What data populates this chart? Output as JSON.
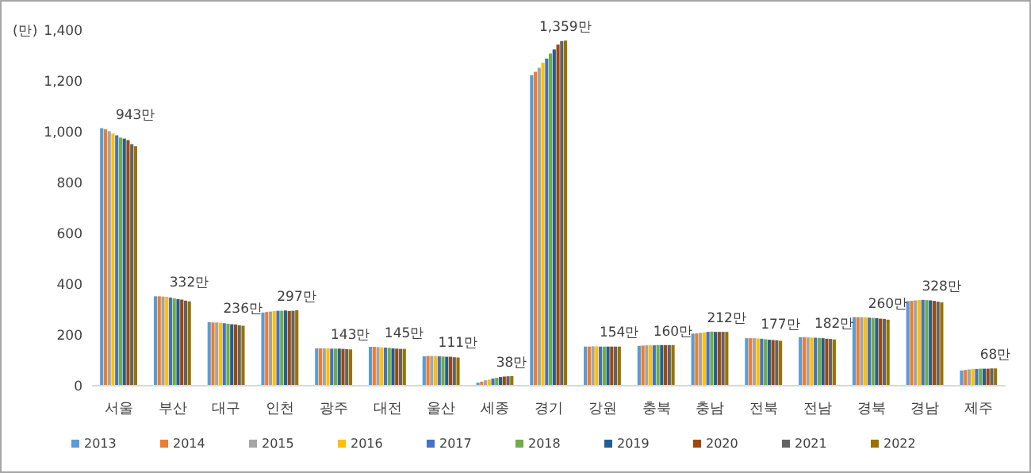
{
  "chart_data": {
    "type": "bar",
    "ylabel": "(만)",
    "categories": [
      "서울",
      "부산",
      "대구",
      "인천",
      "광주",
      "대전",
      "울산",
      "세종",
      "경기",
      "강원",
      "충북",
      "충남",
      "전북",
      "전남",
      "경북",
      "경남",
      "제주"
    ],
    "series": [
      {
        "name": "2013",
        "color": "#5b9bd5",
        "values": [
          1014,
          352,
          250,
          288,
          147,
          153,
          116,
          12,
          1223,
          154,
          157,
          205,
          187,
          191,
          270,
          333,
          60
        ]
      },
      {
        "name": "2014",
        "color": "#ed7d31",
        "values": [
          1010,
          352,
          249,
          290,
          147,
          153,
          117,
          16,
          1236,
          154,
          158,
          206,
          187,
          191,
          270,
          334,
          62
        ]
      },
      {
        "name": "2015",
        "color": "#a5a5a5",
        "values": [
          1002,
          351,
          249,
          292,
          147,
          152,
          117,
          21,
          1252,
          155,
          159,
          208,
          187,
          190,
          270,
          336,
          64
        ]
      },
      {
        "name": "2016",
        "color": "#ffc000",
        "values": [
          993,
          350,
          248,
          294,
          147,
          151,
          117,
          24,
          1272,
          155,
          159,
          210,
          186,
          190,
          270,
          337,
          66
        ]
      },
      {
        "name": "2017",
        "color": "#4472c4",
        "values": [
          986,
          347,
          246,
          295,
          146,
          150,
          116,
          28,
          1288,
          154,
          159,
          212,
          185,
          189,
          268,
          338,
          66
        ]
      },
      {
        "name": "2018",
        "color": "#70ad47",
        "values": [
          977,
          344,
          244,
          295,
          146,
          149,
          115,
          31,
          1308,
          154,
          160,
          213,
          183,
          188,
          267,
          337,
          67
        ]
      },
      {
        "name": "2019",
        "color": "#255e91",
        "values": [
          973,
          341,
          242,
          296,
          146,
          147,
          114,
          34,
          1324,
          154,
          160,
          212,
          181,
          187,
          266,
          336,
          67
        ]
      },
      {
        "name": "2020",
        "color": "#9e480e",
        "values": [
          967,
          339,
          241,
          294,
          145,
          146,
          114,
          36,
          1343,
          154,
          160,
          212,
          180,
          185,
          264,
          334,
          67
        ]
      },
      {
        "name": "2021",
        "color": "#636363",
        "values": [
          951,
          335,
          238,
          295,
          144,
          145,
          112,
          37,
          1357,
          154,
          160,
          212,
          179,
          184,
          263,
          331,
          68
        ]
      },
      {
        "name": "2022",
        "color": "#997300",
        "values": [
          943,
          332,
          236,
          297,
          143,
          145,
          111,
          38,
          1359,
          154,
          160,
          212,
          177,
          182,
          260,
          328,
          68
        ],
        "value_labels": [
          "943만",
          "332만",
          "236만",
          "297만",
          "143만",
          "145만",
          "111만",
          "38만",
          "1,359만",
          "154만",
          "160만",
          "212만",
          "177만",
          "182만",
          "260만",
          "328만",
          "68만"
        ]
      }
    ],
    "ylim": [
      0,
      1400
    ],
    "yticks": [
      0,
      200,
      400,
      600,
      800,
      {
        "value": 1000,
        "label": "1,000"
      },
      {
        "value": 1200,
        "label": "1,200"
      },
      {
        "value": 1400,
        "label": "1,400"
      }
    ],
    "grid": false,
    "legend": "bottom"
  }
}
